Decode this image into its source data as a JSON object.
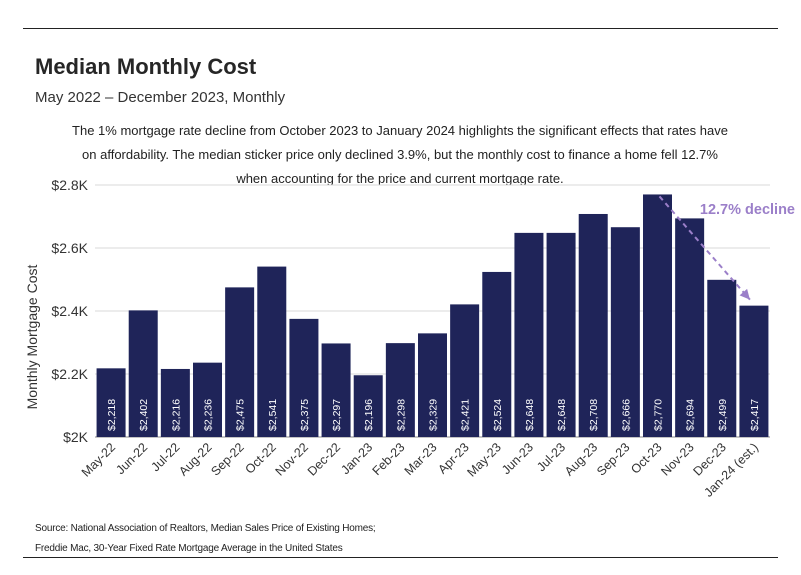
{
  "header": {
    "title": "Median Monthly Cost",
    "subtitle": "May 2022 – December 2023, Monthly"
  },
  "annotation": {
    "lines": [
      "The 1% mortgage rate decline from October 2023 to January 2024 highlights the significant effects that rates have",
      "on affordability. The median sticker price only declined 3.9%, but the monthly cost to finance a home fell 12.7%",
      "when accounting for the price and current mortgage rate."
    ]
  },
  "source": {
    "line1": "Source: National Association of Realtors, Median Sales Price of Existing Homes;",
    "line2": "Freddie Mac, 30-Year Fixed Rate Mortgage Average in the United States"
  },
  "chart_data": {
    "type": "bar",
    "categories": [
      "May-22",
      "Jun-22",
      "Jul-22",
      "Aug-22",
      "Sep-22",
      "Oct-22",
      "Nov-22",
      "Dec-22",
      "Jan-23",
      "Feb-23",
      "Mar-23",
      "Apr-23",
      "May-23",
      "Jun-23",
      "Jul-23",
      "Aug-23",
      "Sep-23",
      "Oct-23",
      "Nov-23",
      "Dec-23",
      "Jan-24 (est.)"
    ],
    "values": [
      2218,
      2402,
      2216,
      2236,
      2475,
      2541,
      2375,
      2297,
      2196,
      2298,
      2329,
      2421,
      2524,
      2648,
      2648,
      2708,
      2666,
      2770,
      2694,
      2499,
      2417
    ],
    "value_labels": [
      "$2,218",
      "$2,402",
      "$2,216",
      "$2,236",
      "$2,475",
      "$2,541",
      "$2,375",
      "$2,297",
      "$2,196",
      "$2,298",
      "$2,329",
      "$2,421",
      "$2,524",
      "$2,648",
      "$2,648",
      "$2,708",
      "$2,666",
      "$2,770",
      "$2,694",
      "$2,499",
      "$2,417"
    ],
    "ylabel": "Monthly Mortgage Cost",
    "ylim": [
      2000,
      2800
    ],
    "yticks": [
      2000,
      2200,
      2400,
      2600,
      2800
    ],
    "ytick_labels": [
      "$2K",
      "$2.2K",
      "$2.4K",
      "$2.6K",
      "$2.8K"
    ],
    "grid": true,
    "bar_color": "#1f2459",
    "gridline_color": "#d9d9d9",
    "callout": {
      "text": "12.7% decline",
      "color": "#9b7fc9",
      "from_category": "Oct-23",
      "to_category": "Jan-24 (est.)"
    }
  }
}
